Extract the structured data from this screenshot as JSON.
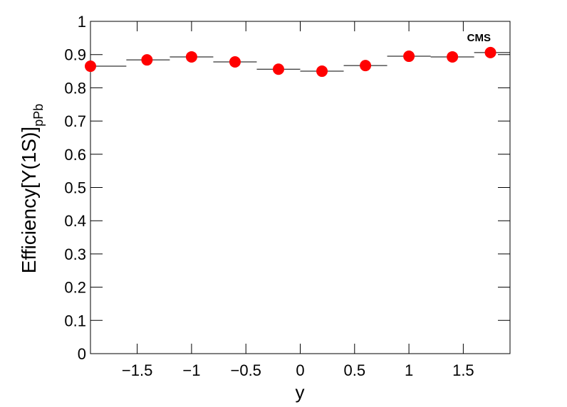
{
  "chart_data": {
    "type": "errorpoints",
    "x_label": "y",
    "y_label": "Efficiency[Υ(1S)]",
    "y_label_sub": "pPb",
    "annotation": "CMS",
    "x": [
      -1.93,
      -1.41,
      -1.0,
      -0.6,
      -0.2,
      0.2,
      0.6,
      1.0,
      1.4,
      1.75
    ],
    "bins": [
      -1.93,
      -1.6,
      -1.2,
      -0.8,
      -0.4,
      0,
      0.4,
      0.8,
      1.2,
      1.6,
      1.93
    ],
    "values": [
      0.865,
      0.884,
      0.893,
      0.878,
      0.856,
      0.85,
      0.867,
      0.895,
      0.893,
      0.906
    ],
    "color": "#ff0000",
    "xlim": [
      -1.93,
      1.93
    ],
    "ylim": [
      0,
      1
    ],
    "xticks": [
      {
        "value": -1.5,
        "label": "−1.5"
      },
      {
        "value": -1,
        "label": "−1"
      },
      {
        "value": -0.5,
        "label": "−0.5"
      },
      0,
      0.5,
      1,
      1.5
    ],
    "yticks": [
      0,
      0.1,
      0.2,
      0.3,
      0.4,
      0.5,
      0.6,
      0.7,
      0.8,
      0.9,
      1
    ]
  }
}
